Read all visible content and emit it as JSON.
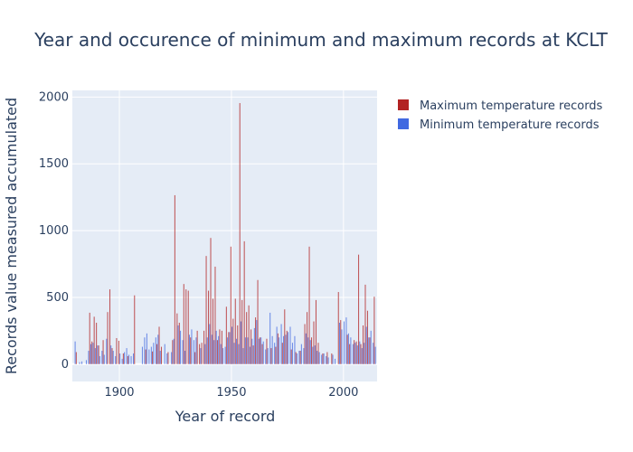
{
  "chart_data": {
    "type": "bar",
    "title": "Year and occurence of minimum and maximum records at KCLT",
    "xlabel": "Year of record",
    "ylabel": "Records value measured accumulated",
    "xlim": [
      1879,
      2015
    ],
    "ylim": [
      -130,
      2050
    ],
    "x_ticks": [
      1900,
      1950,
      2000
    ],
    "y_ticks": [
      0,
      500,
      1000,
      1500,
      2000
    ],
    "legend_position": "top-right",
    "series": [
      {
        "name": "Maximum temperature records",
        "color": "#b22222",
        "points": [
          [
            1881,
            90
          ],
          [
            1887,
            385
          ],
          [
            1888,
            170
          ],
          [
            1889,
            355
          ],
          [
            1890,
            310
          ],
          [
            1891,
            140
          ],
          [
            1893,
            180
          ],
          [
            1895,
            390
          ],
          [
            1896,
            560
          ],
          [
            1897,
            120
          ],
          [
            1899,
            195
          ],
          [
            1900,
            175
          ],
          [
            1902,
            80
          ],
          [
            1904,
            60
          ],
          [
            1907,
            515
          ],
          [
            1912,
            110
          ],
          [
            1915,
            95
          ],
          [
            1917,
            150
          ],
          [
            1918,
            280
          ],
          [
            1919,
            130
          ],
          [
            1922,
            90
          ],
          [
            1924,
            180
          ],
          [
            1925,
            1265
          ],
          [
            1926,
            380
          ],
          [
            1927,
            310
          ],
          [
            1929,
            600
          ],
          [
            1930,
            560
          ],
          [
            1931,
            550
          ],
          [
            1932,
            200
          ],
          [
            1934,
            90
          ],
          [
            1935,
            250
          ],
          [
            1936,
            150
          ],
          [
            1937,
            160
          ],
          [
            1938,
            250
          ],
          [
            1939,
            810
          ],
          [
            1940,
            550
          ],
          [
            1941,
            945
          ],
          [
            1942,
            490
          ],
          [
            1943,
            730
          ],
          [
            1944,
            180
          ],
          [
            1945,
            260
          ],
          [
            1946,
            250
          ],
          [
            1948,
            430
          ],
          [
            1949,
            240
          ],
          [
            1950,
            880
          ],
          [
            1951,
            340
          ],
          [
            1952,
            490
          ],
          [
            1953,
            290
          ],
          [
            1954,
            1955
          ],
          [
            1955,
            480
          ],
          [
            1956,
            920
          ],
          [
            1957,
            390
          ],
          [
            1958,
            440
          ],
          [
            1959,
            260
          ],
          [
            1960,
            140
          ],
          [
            1961,
            350
          ],
          [
            1962,
            630
          ],
          [
            1963,
            200
          ],
          [
            1964,
            150
          ],
          [
            1966,
            190
          ],
          [
            1968,
            120
          ],
          [
            1970,
            130
          ],
          [
            1971,
            230
          ],
          [
            1973,
            160
          ],
          [
            1974,
            410
          ],
          [
            1975,
            250
          ],
          [
            1977,
            110
          ],
          [
            1979,
            90
          ],
          [
            1981,
            100
          ],
          [
            1983,
            300
          ],
          [
            1984,
            390
          ],
          [
            1985,
            880
          ],
          [
            1986,
            200
          ],
          [
            1987,
            320
          ],
          [
            1988,
            480
          ],
          [
            1989,
            160
          ],
          [
            1991,
            80
          ],
          [
            1993,
            90
          ],
          [
            1995,
            80
          ],
          [
            1998,
            540
          ],
          [
            1999,
            330
          ],
          [
            2002,
            220
          ],
          [
            2003,
            150
          ],
          [
            2005,
            180
          ],
          [
            2006,
            170
          ],
          [
            2007,
            820
          ],
          [
            2008,
            150
          ],
          [
            2009,
            290
          ],
          [
            2010,
            595
          ],
          [
            2011,
            400
          ],
          [
            2012,
            200
          ],
          [
            2014,
            505
          ]
        ]
      },
      {
        "name": "Minimum temperature records",
        "color": "#4169e1",
        "points": [
          [
            1880,
            170
          ],
          [
            1882,
            15
          ],
          [
            1883,
            20
          ],
          [
            1885,
            30
          ],
          [
            1886,
            100
          ],
          [
            1887,
            150
          ],
          [
            1888,
            160
          ],
          [
            1889,
            120
          ],
          [
            1890,
            140
          ],
          [
            1891,
            60
          ],
          [
            1892,
            100
          ],
          [
            1893,
            70
          ],
          [
            1894,
            190
          ],
          [
            1896,
            140
          ],
          [
            1897,
            100
          ],
          [
            1898,
            60
          ],
          [
            1900,
            80
          ],
          [
            1901,
            40
          ],
          [
            1902,
            90
          ],
          [
            1903,
            120
          ],
          [
            1904,
            70
          ],
          [
            1905,
            60
          ],
          [
            1906,
            80
          ],
          [
            1910,
            130
          ],
          [
            1911,
            200
          ],
          [
            1912,
            230
          ],
          [
            1913,
            110
          ],
          [
            1914,
            130
          ],
          [
            1915,
            160
          ],
          [
            1916,
            200
          ],
          [
            1917,
            220
          ],
          [
            1918,
            100
          ],
          [
            1920,
            150
          ],
          [
            1921,
            80
          ],
          [
            1923,
            90
          ],
          [
            1924,
            190
          ],
          [
            1926,
            290
          ],
          [
            1927,
            250
          ],
          [
            1928,
            180
          ],
          [
            1929,
            100
          ],
          [
            1931,
            220
          ],
          [
            1932,
            260
          ],
          [
            1933,
            180
          ],
          [
            1934,
            200
          ],
          [
            1936,
            120
          ],
          [
            1938,
            150
          ],
          [
            1939,
            200
          ],
          [
            1940,
            300
          ],
          [
            1941,
            220
          ],
          [
            1942,
            180
          ],
          [
            1943,
            250
          ],
          [
            1944,
            210
          ],
          [
            1945,
            150
          ],
          [
            1946,
            120
          ],
          [
            1947,
            130
          ],
          [
            1948,
            200
          ],
          [
            1949,
            240
          ],
          [
            1950,
            280
          ],
          [
            1951,
            160
          ],
          [
            1952,
            190
          ],
          [
            1953,
            150
          ],
          [
            1954,
            320
          ],
          [
            1955,
            120
          ],
          [
            1956,
            200
          ],
          [
            1957,
            200
          ],
          [
            1958,
            130
          ],
          [
            1959,
            190
          ],
          [
            1960,
            270
          ],
          [
            1961,
            330
          ],
          [
            1962,
            190
          ],
          [
            1963,
            200
          ],
          [
            1964,
            170
          ],
          [
            1965,
            110
          ],
          [
            1966,
            120
          ],
          [
            1967,
            385
          ],
          [
            1968,
            210
          ],
          [
            1969,
            160
          ],
          [
            1970,
            280
          ],
          [
            1971,
            200
          ],
          [
            1972,
            300
          ],
          [
            1973,
            210
          ],
          [
            1974,
            220
          ],
          [
            1975,
            240
          ],
          [
            1976,
            280
          ],
          [
            1977,
            160
          ],
          [
            1978,
            210
          ],
          [
            1979,
            80
          ],
          [
            1980,
            100
          ],
          [
            1981,
            150
          ],
          [
            1982,
            120
          ],
          [
            1983,
            230
          ],
          [
            1984,
            200
          ],
          [
            1985,
            180
          ],
          [
            1986,
            130
          ],
          [
            1987,
            140
          ],
          [
            1988,
            100
          ],
          [
            1989,
            90
          ],
          [
            1990,
            70
          ],
          [
            1991,
            80
          ],
          [
            1992,
            60
          ],
          [
            1993,
            50
          ],
          [
            1995,
            70
          ],
          [
            1996,
            40
          ],
          [
            1998,
            310
          ],
          [
            1999,
            260
          ],
          [
            2000,
            320
          ],
          [
            2001,
            350
          ],
          [
            2002,
            230
          ],
          [
            2003,
            200
          ],
          [
            2004,
            150
          ],
          [
            2005,
            160
          ],
          [
            2006,
            140
          ],
          [
            2007,
            170
          ],
          [
            2008,
            120
          ],
          [
            2009,
            160
          ],
          [
            2010,
            280
          ],
          [
            2011,
            200
          ],
          [
            2012,
            250
          ],
          [
            2013,
            160
          ],
          [
            2014,
            130
          ]
        ]
      }
    ]
  }
}
